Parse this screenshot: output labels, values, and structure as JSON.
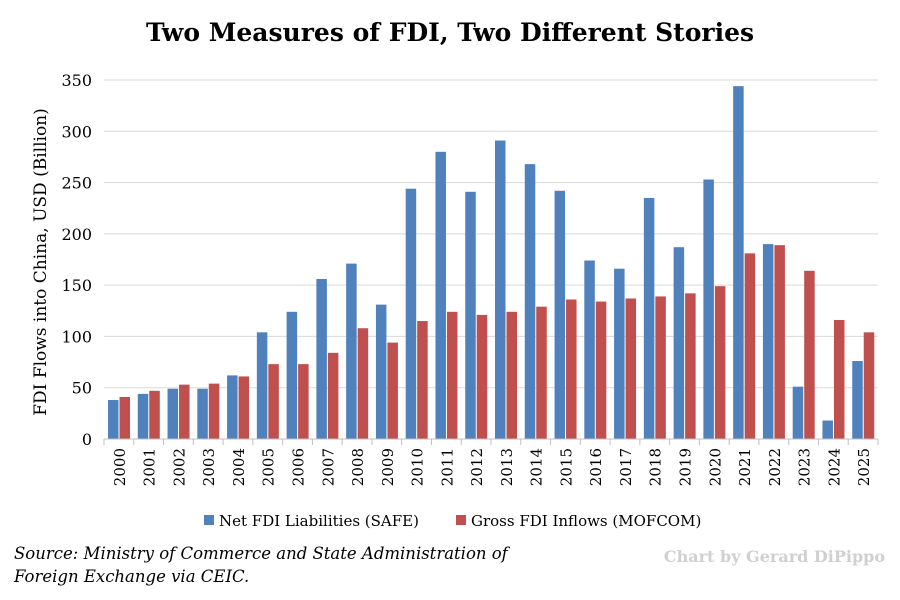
{
  "chart_data": {
    "type": "bar",
    "title": "Two Measures of FDI, Two Different Stories",
    "ylabel": "FDI Flows into China, USD (Billion)",
    "xlabel": "",
    "ylim": [
      0,
      350
    ],
    "yticks": [
      0,
      50,
      100,
      150,
      200,
      250,
      300,
      350
    ],
    "grid": true,
    "legend_position": "bottom",
    "categories": [
      "2000",
      "2001",
      "2002",
      "2003",
      "2004",
      "2005",
      "2006",
      "2007",
      "2008",
      "2009",
      "2010",
      "2011",
      "2012",
      "2013",
      "2014",
      "2015",
      "2016",
      "2017",
      "2018",
      "2019",
      "2020",
      "2021",
      "2022",
      "2023",
      "2024",
      "2025"
    ],
    "series": [
      {
        "name": "Net FDI Liabilities (SAFE)",
        "color": "#4f81bd",
        "values": [
          38,
          44,
          49,
          49,
          62,
          104,
          124,
          156,
          171,
          131,
          244,
          280,
          241,
          291,
          268,
          242,
          174,
          166,
          235,
          187,
          253,
          344,
          190,
          51,
          18,
          76
        ]
      },
      {
        "name": "Gross FDI Inflows (MOFCOM)",
        "color": "#c0504d",
        "values": [
          41,
          47,
          53,
          54,
          61,
          73,
          73,
          84,
          108,
          94,
          115,
          124,
          121,
          124,
          129,
          136,
          134,
          137,
          139,
          142,
          149,
          181,
          189,
          164,
          116,
          104
        ]
      }
    ]
  },
  "footer": {
    "source": "Source: Ministry of Commerce and State Administration of Foreign Exchange via CEIC.",
    "credit": "Chart by Gerard DiPippo"
  }
}
